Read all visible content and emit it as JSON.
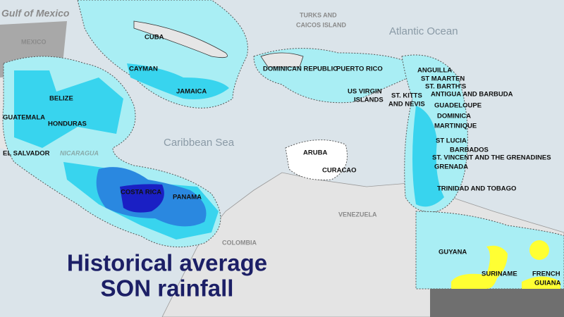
{
  "title": {
    "lines": [
      "Historical average",
      "SON rainfall"
    ]
  },
  "labels": [
    {
      "lines": [
        "Gulf of Mexico"
      ]
    },
    {
      "lines": [
        "MEXICO"
      ]
    },
    {
      "lines": [
        "TURKS AND",
        "CAICOS ISLAND"
      ]
    },
    {
      "lines": [
        "Atlantic Ocean"
      ]
    },
    {
      "lines": [
        "CUBA"
      ]
    },
    {
      "lines": [
        "DOMINICAN REPUBLIC"
      ]
    },
    {
      "lines": [
        "CAYMAN"
      ]
    },
    {
      "lines": [
        "JAMAICA"
      ]
    },
    {
      "lines": [
        "PUERTO RICO"
      ]
    },
    {
      "lines": [
        "ANGUILLA"
      ]
    },
    {
      "lines": [
        "ST MAARTEN"
      ]
    },
    {
      "lines": [
        "ST. BARTH'S"
      ]
    },
    {
      "lines": [
        "ANTIGUA AND BARBUDA"
      ]
    },
    {
      "lines": [
        "BELIZE"
      ]
    },
    {
      "lines": [
        "US VIRGIN",
        "ISLANDS"
      ]
    },
    {
      "lines": [
        "ST. KITTS",
        "AND NEVIS"
      ]
    },
    {
      "lines": [
        "GUADELOUPE"
      ]
    },
    {
      "lines": [
        "GUATEMALA"
      ]
    },
    {
      "lines": [
        "HONDURAS"
      ]
    },
    {
      "lines": [
        "DOMINICA"
      ]
    },
    {
      "lines": [
        "MARTINIQUE"
      ]
    },
    {
      "lines": [
        "Caribbean Sea"
      ]
    },
    {
      "lines": [
        "EL SALVADOR"
      ]
    },
    {
      "lines": [
        "NICARAGUA"
      ]
    },
    {
      "lines": [
        "ARUBA"
      ]
    },
    {
      "lines": [
        "CURACAO"
      ]
    },
    {
      "lines": [
        "ST LUCIA"
      ]
    },
    {
      "lines": [
        "BARBADOS"
      ]
    },
    {
      "lines": [
        "ST. VINCENT AND THE GRENADINES"
      ]
    },
    {
      "lines": [
        "GRENADA"
      ]
    },
    {
      "lines": [
        "COSTA RICA"
      ]
    },
    {
      "lines": [
        "PANAMA"
      ]
    },
    {
      "lines": [
        "TRINIDAD AND TOBAGO"
      ]
    },
    {
      "lines": [
        "VENEZUELA"
      ]
    },
    {
      "lines": [
        "COLOMBIA"
      ]
    },
    {
      "lines": [
        "GUYANA"
      ]
    },
    {
      "lines": [
        "SURINAME"
      ]
    },
    {
      "lines": [
        "FRENCH",
        "GUIANA"
      ]
    }
  ]
}
